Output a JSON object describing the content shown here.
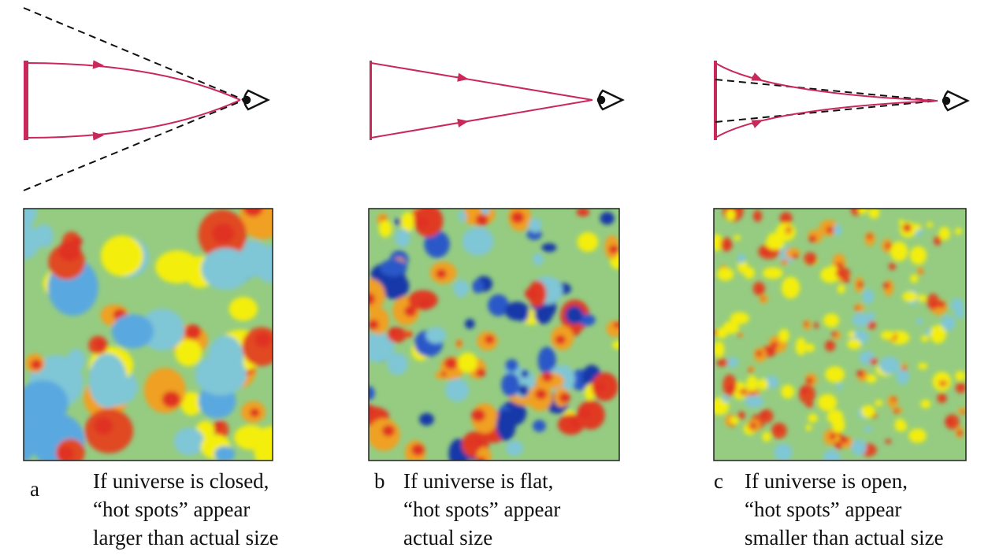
{
  "panels": [
    {
      "letter": "a",
      "caption": [
        "If universe is closed,",
        "“hot spots” appear",
        "larger than actual size"
      ]
    },
    {
      "letter": "b",
      "caption": [
        "If universe is flat,",
        "“hot spots” appear",
        "actual size"
      ]
    },
    {
      "letter": "c",
      "caption": [
        "If universe is open,",
        "“hot spots” appear",
        "smaller than actual size"
      ]
    }
  ]
}
